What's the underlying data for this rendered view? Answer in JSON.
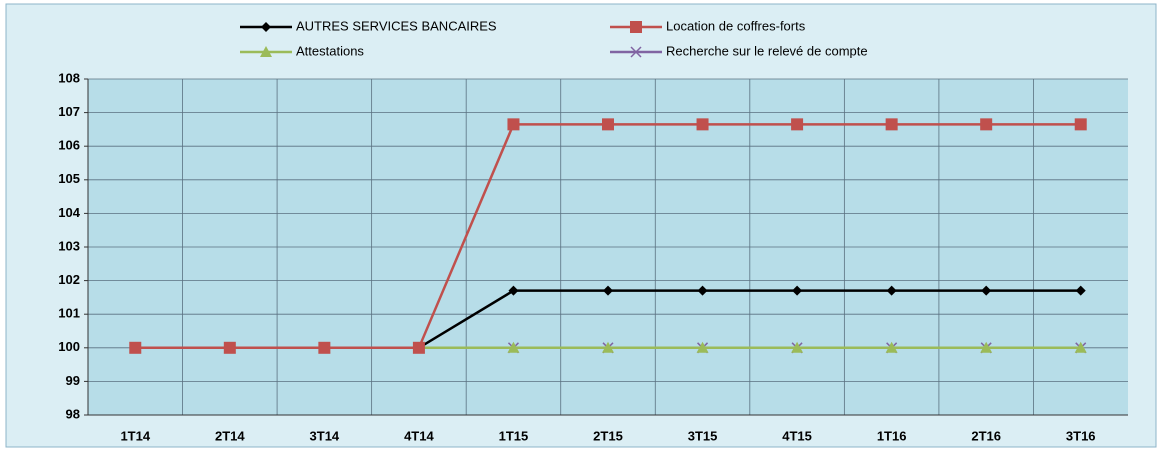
{
  "chart_data": {
    "type": "line",
    "categories": [
      "1T14",
      "2T14",
      "3T14",
      "4T14",
      "1T15",
      "2T15",
      "3T15",
      "4T15",
      "1T16",
      "2T16",
      "3T16"
    ],
    "series": [
      {
        "name": "Recherche sur le relevé de compte",
        "color": "#8064a2",
        "marker": "x",
        "values": [
          100,
          100,
          100,
          100,
          100,
          100,
          100,
          100,
          100,
          100,
          100
        ]
      },
      {
        "name": "Attestations",
        "color": "#9bbb59",
        "marker": "triangle",
        "values": [
          100,
          100,
          100,
          100,
          100,
          100,
          100,
          100,
          100,
          100,
          100
        ]
      },
      {
        "name": "AUTRES SERVICES BANCAIRES",
        "color": "#000000",
        "marker": "diamond",
        "values": [
          100,
          100,
          100,
          100,
          101.7,
          101.7,
          101.7,
          101.7,
          101.7,
          101.7,
          101.7
        ]
      },
      {
        "name": "Location de coffres-forts",
        "color": "#c0504d",
        "marker": "square",
        "values": [
          100,
          100,
          100,
          100,
          106.65,
          106.65,
          106.65,
          106.65,
          106.65,
          106.65,
          106.65
        ]
      }
    ],
    "ylim": [
      98,
      108
    ],
    "yticks": [
      98,
      99,
      100,
      101,
      102,
      103,
      104,
      105,
      106,
      107,
      108
    ],
    "grid": true,
    "legend": "top"
  }
}
